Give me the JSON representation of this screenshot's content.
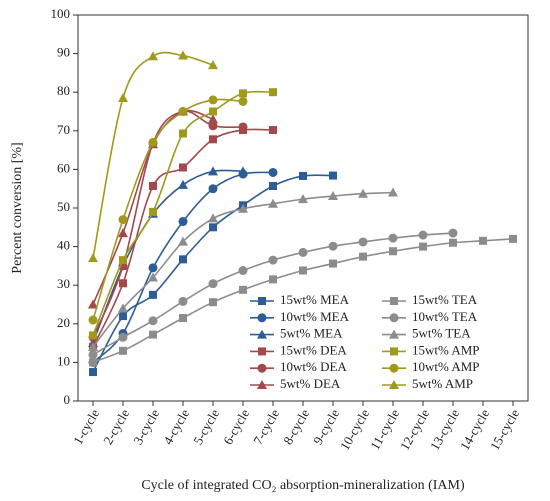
{
  "chart_data": {
    "type": "line",
    "xlabel": "Cycle of integrated CO₂ absorption-mineralization (IAM)",
    "ylabel": "Percent conversion [%]",
    "categories": [
      "1-cycle",
      "2-cycle",
      "3-cycle",
      "4-cycle",
      "5-cycle",
      "6-cycle",
      "7-cycle",
      "8-cycle",
      "9-cycle",
      "10-cycle",
      "11-cycle",
      "12-cycle",
      "13-cycle",
      "14-cycle",
      "15-cycle"
    ],
    "ylim": [
      0,
      100
    ],
    "yticks": [
      0,
      10,
      20,
      30,
      40,
      50,
      60,
      70,
      80,
      90,
      100
    ],
    "legend": "lower center",
    "smooth": true,
    "series": [
      {
        "name": "15wt% MEA",
        "color": "#2e5c94",
        "marker": "square",
        "values": [
          7.5,
          22,
          27.5,
          36.7,
          45,
          50.7,
          55.7,
          58.3,
          58.4,
          null,
          null,
          null,
          null,
          null,
          null
        ]
      },
      {
        "name": "10wt% MEA",
        "color": "#2e5c94",
        "marker": "circle",
        "values": [
          10,
          17.5,
          34.5,
          46.5,
          55,
          58.8,
          59.2,
          null,
          null,
          null,
          null,
          null,
          null,
          null,
          null
        ]
      },
      {
        "name": "5wt% MEA",
        "color": "#2e5c94",
        "marker": "triangle",
        "values": [
          15,
          35,
          48.5,
          56,
          59.5,
          59.5,
          null,
          null,
          null,
          null,
          null,
          null,
          null,
          null,
          null
        ]
      },
      {
        "name": "15wt% DEA",
        "color": "#a3484b",
        "marker": "square",
        "values": [
          14,
          30.5,
          55.7,
          60.5,
          67.8,
          70.2,
          70.2,
          null,
          null,
          null,
          null,
          null,
          null,
          null,
          null
        ]
      },
      {
        "name": "10wt% DEA",
        "color": "#a3484b",
        "marker": "circle",
        "values": [
          16.5,
          35,
          66.8,
          75,
          71.3,
          71,
          null,
          null,
          null,
          null,
          null,
          null,
          null,
          null,
          null
        ]
      },
      {
        "name": "5wt% DEA",
        "color": "#a3484b",
        "marker": "triangle",
        "values": [
          25,
          43.5,
          66.5,
          75,
          73,
          null,
          null,
          null,
          null,
          null,
          null,
          null,
          null,
          null,
          null
        ]
      },
      {
        "name": "15wt% TEA",
        "color": "#8c8c8c",
        "marker": "square",
        "values": [
          10,
          13,
          17.2,
          21.5,
          25.6,
          28.8,
          31.5,
          33.8,
          35.6,
          37.4,
          38.8,
          40,
          41,
          41.5,
          42
        ]
      },
      {
        "name": "10wt% TEA",
        "color": "#8c8c8c",
        "marker": "circle",
        "values": [
          12,
          16.5,
          20.8,
          25.8,
          30.4,
          33.8,
          36.5,
          38.5,
          40.1,
          41.2,
          42.2,
          43,
          43.5,
          null,
          null
        ]
      },
      {
        "name": "5wt% TEA",
        "color": "#8c8c8c",
        "marker": "triangle",
        "values": [
          14,
          24,
          32,
          41.3,
          47.3,
          49.8,
          51.1,
          52.3,
          53.1,
          53.7,
          54,
          null,
          null,
          null,
          null
        ]
      },
      {
        "name": "15wt% AMP",
        "color": "#a09a1c",
        "marker": "square",
        "values": [
          17,
          36.5,
          49,
          69.3,
          75,
          79.7,
          80,
          null,
          null,
          null,
          null,
          null,
          null,
          null,
          null
        ]
      },
      {
        "name": "10wt% AMP",
        "color": "#a09a1c",
        "marker": "circle",
        "values": [
          21,
          47,
          67,
          75,
          78,
          77.6,
          null,
          null,
          null,
          null,
          null,
          null,
          null,
          null,
          null
        ]
      },
      {
        "name": "5wt% AMP",
        "color": "#a09a1c",
        "marker": "triangle",
        "values": [
          37,
          78.5,
          89.3,
          89.5,
          87,
          null,
          null,
          null,
          null,
          null,
          null,
          null,
          null,
          null,
          null
        ]
      }
    ]
  }
}
